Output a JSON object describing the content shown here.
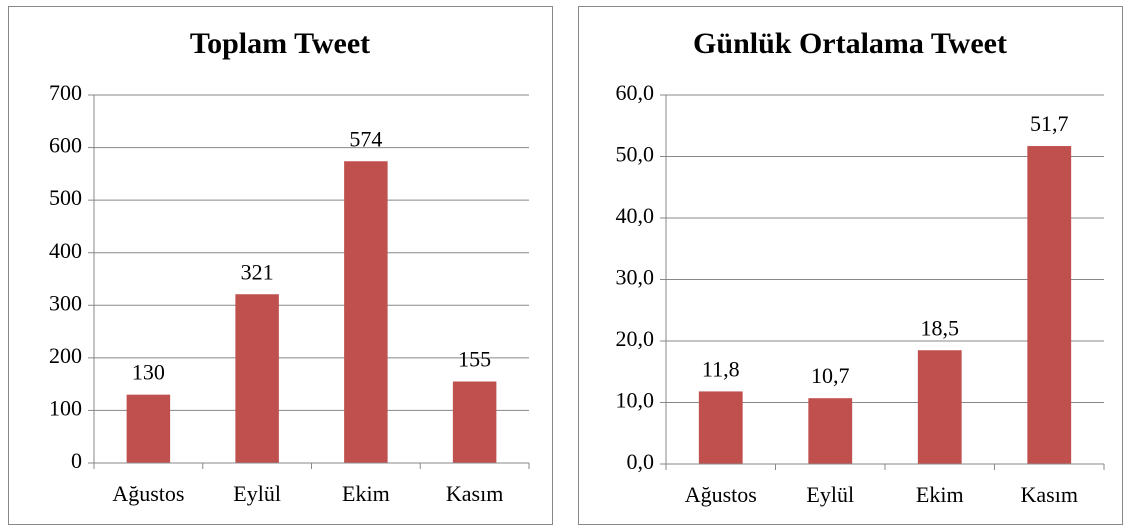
{
  "chart_data": [
    {
      "type": "bar",
      "title": "Toplam Tweet",
      "categories": [
        "Ağustos",
        "Eylül",
        "Ekim",
        "Kasım"
      ],
      "values": [
        130,
        321,
        574,
        155
      ],
      "color": "#c0504d",
      "ylim": [
        0,
        700
      ],
      "yticks": [
        0,
        100,
        200,
        300,
        400,
        500,
        600,
        700
      ],
      "grid": true
    },
    {
      "type": "bar",
      "title": "Günlük Ortalama Tweet",
      "categories": [
        "Ağustos",
        "Eylül",
        "Ekim",
        "Kasım"
      ],
      "values": [
        11.8,
        10.7,
        18.5,
        51.7
      ],
      "value_labels": [
        "11,8",
        "10,7",
        "18,5",
        "51,7"
      ],
      "color": "#c0504d",
      "ylim": [
        0,
        60
      ],
      "yticks": [
        {
          "value": 0,
          "label": "0,0"
        },
        {
          "value": 10,
          "label": "10,0"
        },
        {
          "value": 20,
          "label": "20,0"
        },
        {
          "value": 30,
          "label": "30,0"
        },
        {
          "value": 40,
          "label": "40,0"
        },
        {
          "value": 50,
          "label": "50,0"
        },
        {
          "value": 60,
          "label": "60,0"
        }
      ],
      "grid": true
    }
  ]
}
